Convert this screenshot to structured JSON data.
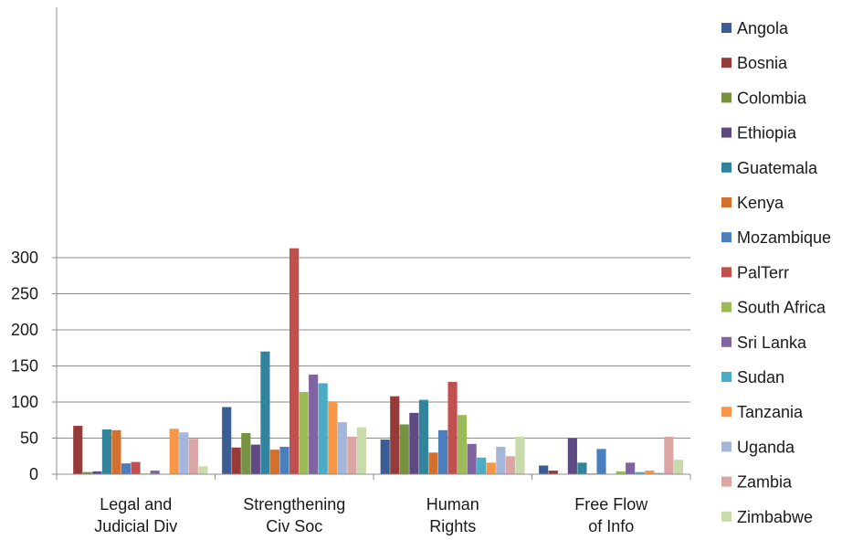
{
  "chart_data": {
    "type": "bar",
    "title": "",
    "xlabel": "",
    "ylabel": "",
    "ylim": [
      0,
      320
    ],
    "yticks": [
      0,
      50,
      100,
      150,
      200,
      250,
      300
    ],
    "grid": true,
    "legend_position": "right",
    "categories": [
      [
        "Legal and",
        "Judicial Div"
      ],
      [
        "Strengthening",
        "Civ Soc"
      ],
      [
        "Human",
        "Rights"
      ],
      [
        "Free Flow",
        "of Info"
      ]
    ],
    "series": [
      {
        "name": "Angola",
        "color": "#3c5d94",
        "values": [
          0,
          93,
          48,
          12
        ]
      },
      {
        "name": "Bosnia",
        "color": "#973b38",
        "values": [
          67,
          37,
          108,
          5
        ]
      },
      {
        "name": "Colombia",
        "color": "#779240",
        "values": [
          3,
          57,
          69,
          0
        ]
      },
      {
        "name": "Ethiopia",
        "color": "#5f4983",
        "values": [
          4,
          41,
          85,
          50
        ]
      },
      {
        "name": "Guatemala",
        "color": "#31849b",
        "values": [
          62,
          170,
          103,
          16
        ]
      },
      {
        "name": "Kenya",
        "color": "#d4702e",
        "values": [
          61,
          34,
          30,
          1
        ]
      },
      {
        "name": "Mozambique",
        "color": "#4a7ebe",
        "values": [
          15,
          38,
          61,
          35
        ]
      },
      {
        "name": "PalTerr",
        "color": "#c0504d",
        "values": [
          17,
          313,
          128,
          0
        ]
      },
      {
        "name": "South Africa",
        "color": "#9bbb59",
        "values": [
          1,
          114,
          82,
          4
        ]
      },
      {
        "name": "Sri Lanka",
        "color": "#8064a2",
        "values": [
          5,
          138,
          42,
          16
        ]
      },
      {
        "name": "Sudan",
        "color": "#4bacc6",
        "values": [
          0,
          126,
          23,
          3
        ]
      },
      {
        "name": "Tanzania",
        "color": "#f79646",
        "values": [
          63,
          101,
          16,
          5
        ]
      },
      {
        "name": "Uganda",
        "color": "#a5b6db",
        "values": [
          58,
          72,
          38,
          2
        ]
      },
      {
        "name": "Zambia",
        "color": "#dba5a4",
        "values": [
          49,
          52,
          25,
          52
        ]
      },
      {
        "name": "Zimbabwe",
        "color": "#cadbab",
        "values": [
          11,
          65,
          52,
          20
        ]
      }
    ]
  }
}
